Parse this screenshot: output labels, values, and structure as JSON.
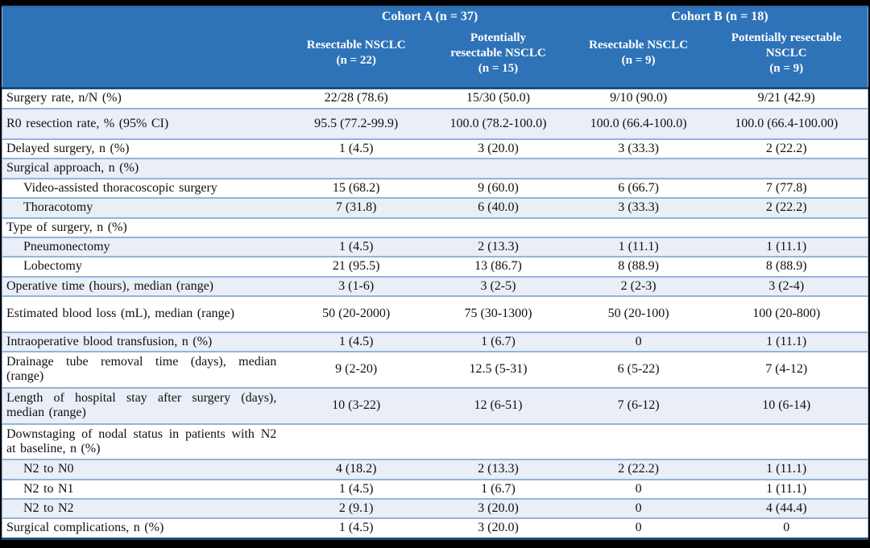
{
  "chart_data": {
    "type": "table",
    "column_groups": [
      {
        "label": "Cohort A (n = 37)",
        "span": 2
      },
      {
        "label": "Cohort B (n = 18)",
        "span": 2
      }
    ],
    "columns": [
      "Resectable NSCLC\n(n = 22)",
      "Potentially\nresectable NSCLC\n(n = 15)",
      "Resectable NSCLC\n(n = 9)",
      "Potentially resectable\nNSCLC\n(n = 9)"
    ],
    "rows": [
      {
        "label": "Surgery rate, n/N (%)",
        "indent": false,
        "values": [
          "22/28 (78.6)",
          "15/30 (50.0)",
          "9/10 (90.0)",
          "9/21 (42.9)"
        ]
      },
      {
        "label": "R0 resection rate, % (95% CI)",
        "indent": false,
        "values": [
          "95.5 (77.2-99.9)",
          "100.0 (78.2-100.0)",
          "100.0 (66.4-100.0)",
          "100.0 (66.4-100.00)"
        ]
      },
      {
        "label": "Delayed surgery, n (%)",
        "indent": false,
        "values": [
          "1 (4.5)",
          "3 (20.0)",
          "3 (33.3)",
          "2 (22.2)"
        ]
      },
      {
        "label": "Surgical approach, n (%)",
        "indent": false,
        "values": [
          "",
          "",
          "",
          ""
        ]
      },
      {
        "label": "Video-assisted thoracoscopic surgery",
        "indent": true,
        "values": [
          "15 (68.2)",
          "9 (60.0)",
          "6 (66.7)",
          "7 (77.8)"
        ]
      },
      {
        "label": "Thoracotomy",
        "indent": true,
        "values": [
          "7 (31.8)",
          "6 (40.0)",
          "3 (33.3)",
          "2 (22.2)"
        ]
      },
      {
        "label": "Type of surgery, n (%)",
        "indent": false,
        "values": [
          "",
          "",
          "",
          ""
        ]
      },
      {
        "label": "Pneumonectomy",
        "indent": true,
        "values": [
          "1 (4.5)",
          "2 (13.3)",
          "1 (11.1)",
          "1 (11.1)"
        ]
      },
      {
        "label": "Lobectomy",
        "indent": true,
        "values": [
          "21 (95.5)",
          "13 (86.7)",
          "8 (88.9)",
          "8 (88.9)"
        ]
      },
      {
        "label": "Operative time (hours), median (range)",
        "indent": false,
        "values": [
          "3 (1-6)",
          "3 (2-5)",
          "2 (2-3)",
          "3 (2-4)"
        ]
      },
      {
        "label": "Estimated blood loss (mL), median (range)",
        "indent": false,
        "values": [
          "50 (20-2000)",
          "75 (30-1300)",
          "50 (20-100)",
          "100 (20-800)"
        ]
      },
      {
        "label": "Intraoperative blood transfusion, n (%)",
        "indent": false,
        "values": [
          "1 (4.5)",
          "1 (6.7)",
          "0",
          "1 (11.1)"
        ]
      },
      {
        "label": "Drainage tube removal time (days), median (range)",
        "indent": false,
        "values": [
          "9 (2-20)",
          "12.5 (5-31)",
          "6 (5-22)",
          "7 (4-12)"
        ]
      },
      {
        "label": "Length of hospital stay after surgery (days), median (range)",
        "indent": false,
        "values": [
          "10 (3-22)",
          "12 (6-51)",
          "7 (6-12)",
          "10 (6-14)"
        ]
      },
      {
        "label": "Downstaging of nodal status in patients with N2 at baseline, n (%)",
        "indent": false,
        "values": [
          "",
          "",
          "",
          ""
        ]
      },
      {
        "label": "N2 to N0",
        "indent": true,
        "values": [
          "4 (18.2)",
          "2 (13.3)",
          "2 (22.2)",
          "1 (11.1)"
        ]
      },
      {
        "label": "N2 to N1",
        "indent": true,
        "values": [
          "1 (4.5)",
          "1 (6.7)",
          "0",
          "1 (11.1)"
        ]
      },
      {
        "label": "N2 to N2",
        "indent": true,
        "values": [
          "2 (9.1)",
          "3 (20.0)",
          "0",
          "4 (44.4)"
        ]
      },
      {
        "label": "Surgical complications, n (%)",
        "indent": false,
        "values": [
          "1 (4.5)",
          "3 (20.0)",
          "0",
          "0"
        ]
      }
    ]
  },
  "colors": {
    "header_bg": "#2E73B8",
    "header_text": "#FFFFFF",
    "row_bg": "#FFFFFF",
    "row_alt_bg": "#E9EEF7",
    "grid_line": "#95B3D7",
    "heavy_line": "#1F4E79",
    "frame": "#000000"
  }
}
